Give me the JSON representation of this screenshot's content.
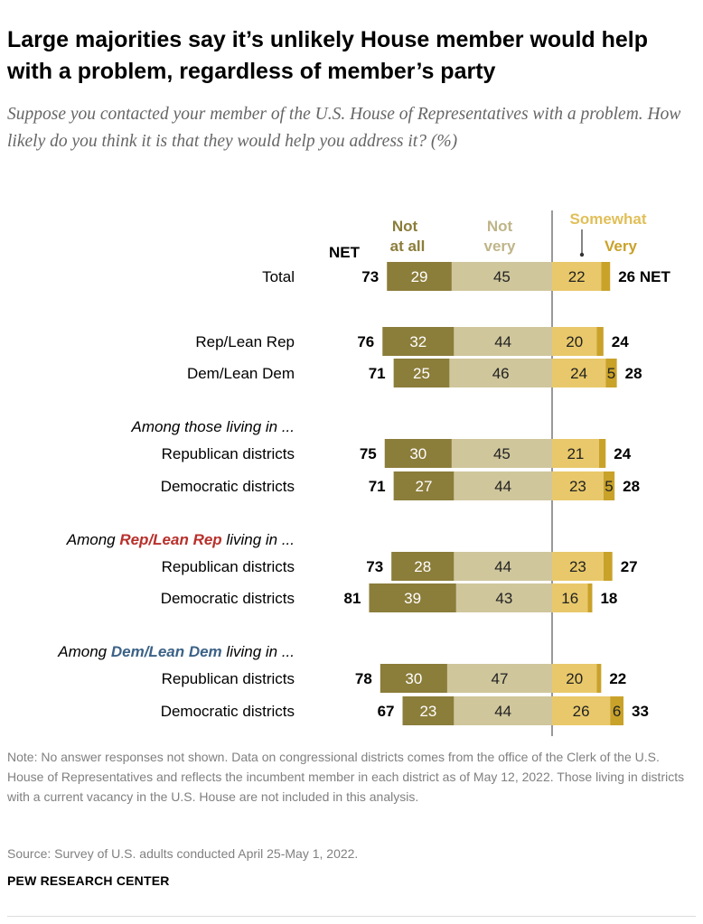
{
  "title": "Large majorities say it’s unlikely House member would help with a problem, regardless of member’s party",
  "subtitle": "Suppose you contacted your member of the U.S. House of Representatives with a problem. How likely do you think it is that they would help you address it? (%)",
  "note": "Note: No answer responses not shown. Data on congressional districts comes from the office of the Clerk of the U.S. House of Representatives and reflects the incumbent member in each district as of May 12, 2022. Those living in districts with a current vacancy in the U.S. House are not included in this analysis.",
  "source": "Source: Survey of U.S. adults conducted April 25-May 1, 2022.",
  "brand": "PEW RESEARCH CENTER",
  "colors": {
    "not_at_all": "#8b7d3a",
    "not_very": "#cfc69c",
    "somewhat": "#e8c86a",
    "very": "#c9a22a",
    "header_not_at_all": "#8b7d3a",
    "header_not_very": "#bfb58a",
    "header_somewhat": "#e1bf58",
    "header_very": "#c9a22a",
    "rep": "#b8302b",
    "dem": "#3c6287",
    "divider": "#555555"
  },
  "chart_data": {
    "type": "bar",
    "subtype": "diverging-stacked",
    "unit": "%",
    "headers": {
      "net_left": "NET",
      "not_at_all": [
        "Not",
        "at all"
      ],
      "not_very": [
        "Not",
        "very"
      ],
      "somewhat": "Somewhat",
      "very": "Very"
    },
    "net_suffix": "NET",
    "sections": [
      {
        "heading": null,
        "rows": [
          "Total"
        ]
      },
      {
        "heading": null,
        "rows": [
          "Rep/Lean Rep",
          "Dem/Lean Dem"
        ]
      },
      {
        "heading": [
          {
            "text": "Among those living in ...",
            "color": null
          }
        ],
        "rows": [
          "Republican districts",
          "Democratic districts"
        ]
      },
      {
        "heading": [
          {
            "text": "Among ",
            "color": null
          },
          {
            "text": "Rep/Lean Rep",
            "color": "rep"
          },
          {
            "text": " living in ...",
            "color": null
          }
        ],
        "rows": [
          "Republican districts",
          "Democratic districts"
        ]
      },
      {
        "heading": [
          {
            "text": "Among ",
            "color": null
          },
          {
            "text": "Dem/Lean Dem",
            "color": "dem"
          },
          {
            "text": " living in ...",
            "color": null
          }
        ],
        "rows": [
          "Republican districts",
          "Democratic districts"
        ]
      }
    ],
    "rows": [
      {
        "label": "Total",
        "net_unlikely": 73,
        "not_at_all": 29,
        "not_very": 45,
        "somewhat": 22,
        "very": 4,
        "very_label": null,
        "net_likely": 26
      },
      {
        "label": "Rep/Lean Rep",
        "net_unlikely": 76,
        "not_at_all": 32,
        "not_very": 44,
        "somewhat": 20,
        "very": 3,
        "very_label": null,
        "net_likely": 24
      },
      {
        "label": "Dem/Lean Dem",
        "net_unlikely": 71,
        "not_at_all": 25,
        "not_very": 46,
        "somewhat": 24,
        "very": 5,
        "very_label": "5",
        "net_likely": 28
      },
      {
        "label": "Republican districts",
        "net_unlikely": 75,
        "not_at_all": 30,
        "not_very": 45,
        "somewhat": 21,
        "very": 3,
        "very_label": null,
        "net_likely": 24
      },
      {
        "label": "Democratic districts",
        "net_unlikely": 71,
        "not_at_all": 27,
        "not_very": 44,
        "somewhat": 23,
        "very": 5,
        "very_label": "5",
        "net_likely": 28
      },
      {
        "label": "Republican districts",
        "net_unlikely": 73,
        "not_at_all": 28,
        "not_very": 44,
        "somewhat": 23,
        "very": 4,
        "very_label": null,
        "net_likely": 27
      },
      {
        "label": "Democratic districts",
        "net_unlikely": 81,
        "not_at_all": 39,
        "not_very": 43,
        "somewhat": 16,
        "very": 2,
        "very_label": null,
        "net_likely": 18
      },
      {
        "label": "Republican districts",
        "net_unlikely": 78,
        "not_at_all": 30,
        "not_very": 47,
        "somewhat": 20,
        "very": 2,
        "very_label": null,
        "net_likely": 22
      },
      {
        "label": "Democratic districts",
        "net_unlikely": 67,
        "not_at_all": 23,
        "not_very": 44,
        "somewhat": 26,
        "very": 6,
        "very_label": "6",
        "net_likely": 33
      }
    ]
  }
}
